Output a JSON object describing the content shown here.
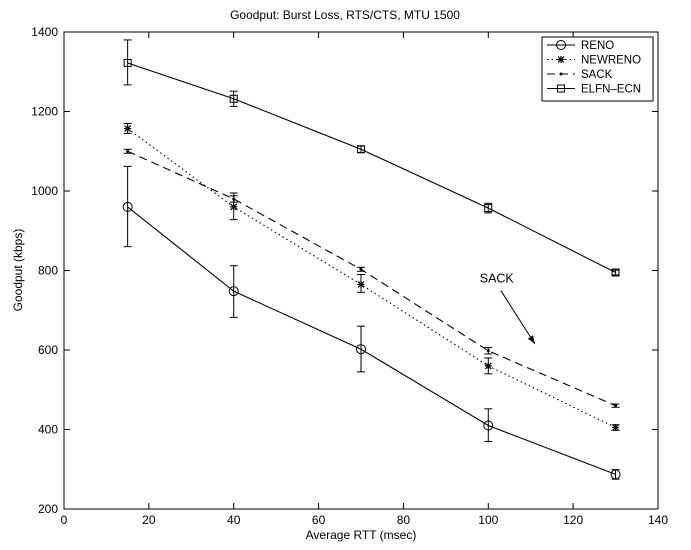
{
  "chart_data": {
    "type": "line",
    "title": "Goodput: Burst Loss, RTS/CTS, MTU 1500",
    "xlabel": "Average RTT (msec)",
    "ylabel": "Goodput (kbps)",
    "xlim": [
      0,
      140
    ],
    "ylim": [
      200,
      1400
    ],
    "xticks": [
      0,
      20,
      40,
      60,
      80,
      100,
      120,
      140
    ],
    "yticks": [
      200,
      400,
      600,
      800,
      1000,
      1200,
      1400
    ],
    "grid": false,
    "legend_position": "top-right",
    "x": [
      15,
      40,
      70,
      100,
      130
    ],
    "series": [
      {
        "name": "RENO",
        "line_style": "solid",
        "marker": "circle",
        "values": [
          960,
          748,
          602,
          410,
          287
        ],
        "error": [
          [
            860,
            1062
          ],
          [
            682,
            812
          ],
          [
            545,
            660
          ],
          [
            370,
            452
          ],
          [
            275,
            299
          ]
        ]
      },
      {
        "name": "NEWRENO",
        "line_style": "dotted",
        "marker": "star",
        "values": [
          1157,
          960,
          765,
          560,
          405
        ],
        "error": [
          [
            1145,
            1170
          ],
          [
            928,
            995
          ],
          [
            745,
            790
          ],
          [
            540,
            580
          ],
          [
            398,
            412
          ]
        ]
      },
      {
        "name": "SACK",
        "line_style": "dashed",
        "marker": "point",
        "values": [
          1100,
          980,
          803,
          598,
          460
        ],
        "error": [
          [
            1095,
            1105
          ],
          [
            972,
            988
          ],
          [
            798,
            808
          ],
          [
            590,
            606
          ],
          [
            456,
            464
          ]
        ]
      },
      {
        "name": "ELFN–ECN",
        "line_style": "solid",
        "marker": "square",
        "values": [
          1322,
          1232,
          1105,
          957,
          795
        ],
        "error": [
          [
            1267,
            1380
          ],
          [
            1213,
            1251
          ],
          [
            1097,
            1113
          ],
          [
            945,
            969
          ],
          [
            789,
            801
          ]
        ]
      }
    ],
    "annotations": [
      {
        "text": "SACK",
        "x": 102,
        "y": 770,
        "arrow_to_x": 111,
        "arrow_to_y": 615
      }
    ]
  }
}
